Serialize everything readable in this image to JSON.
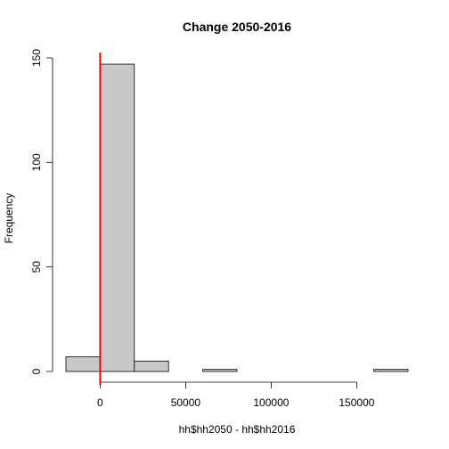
{
  "chart_data": {
    "type": "histogram",
    "title": "Change 2050-2016",
    "xlabel": "hh$hh2050 - hh$hh2016",
    "ylabel": "Frequency",
    "xlim": [
      -20000,
      180000
    ],
    "ylim": [
      0,
      150
    ],
    "bins": [
      {
        "x0": -20000,
        "x1": 0,
        "count": 7
      },
      {
        "x0": 0,
        "x1": 20000,
        "count": 147
      },
      {
        "x0": 20000,
        "x1": 40000,
        "count": 5
      },
      {
        "x0": 40000,
        "x1": 60000,
        "count": 0
      },
      {
        "x0": 60000,
        "x1": 80000,
        "count": 1
      },
      {
        "x0": 80000,
        "x1": 100000,
        "count": 0
      },
      {
        "x0": 100000,
        "x1": 120000,
        "count": 0
      },
      {
        "x0": 120000,
        "x1": 140000,
        "count": 0
      },
      {
        "x0": 140000,
        "x1": 160000,
        "count": 0
      },
      {
        "x0": 160000,
        "x1": 180000,
        "count": 1
      }
    ],
    "x_ticks": [
      0,
      50000,
      100000,
      150000
    ],
    "x_tick_labels": [
      "0",
      "50000",
      "100000",
      "150000"
    ],
    "y_ticks": [
      0,
      50,
      100,
      150
    ],
    "y_tick_labels": [
      "0",
      "50",
      "100",
      "150"
    ],
    "reference_line": {
      "x": 0
    },
    "grid": false,
    "colors": {
      "bar_fill": "#c8c8c8",
      "bar_stroke": "#000000",
      "reference_line": "#ff0000"
    }
  }
}
